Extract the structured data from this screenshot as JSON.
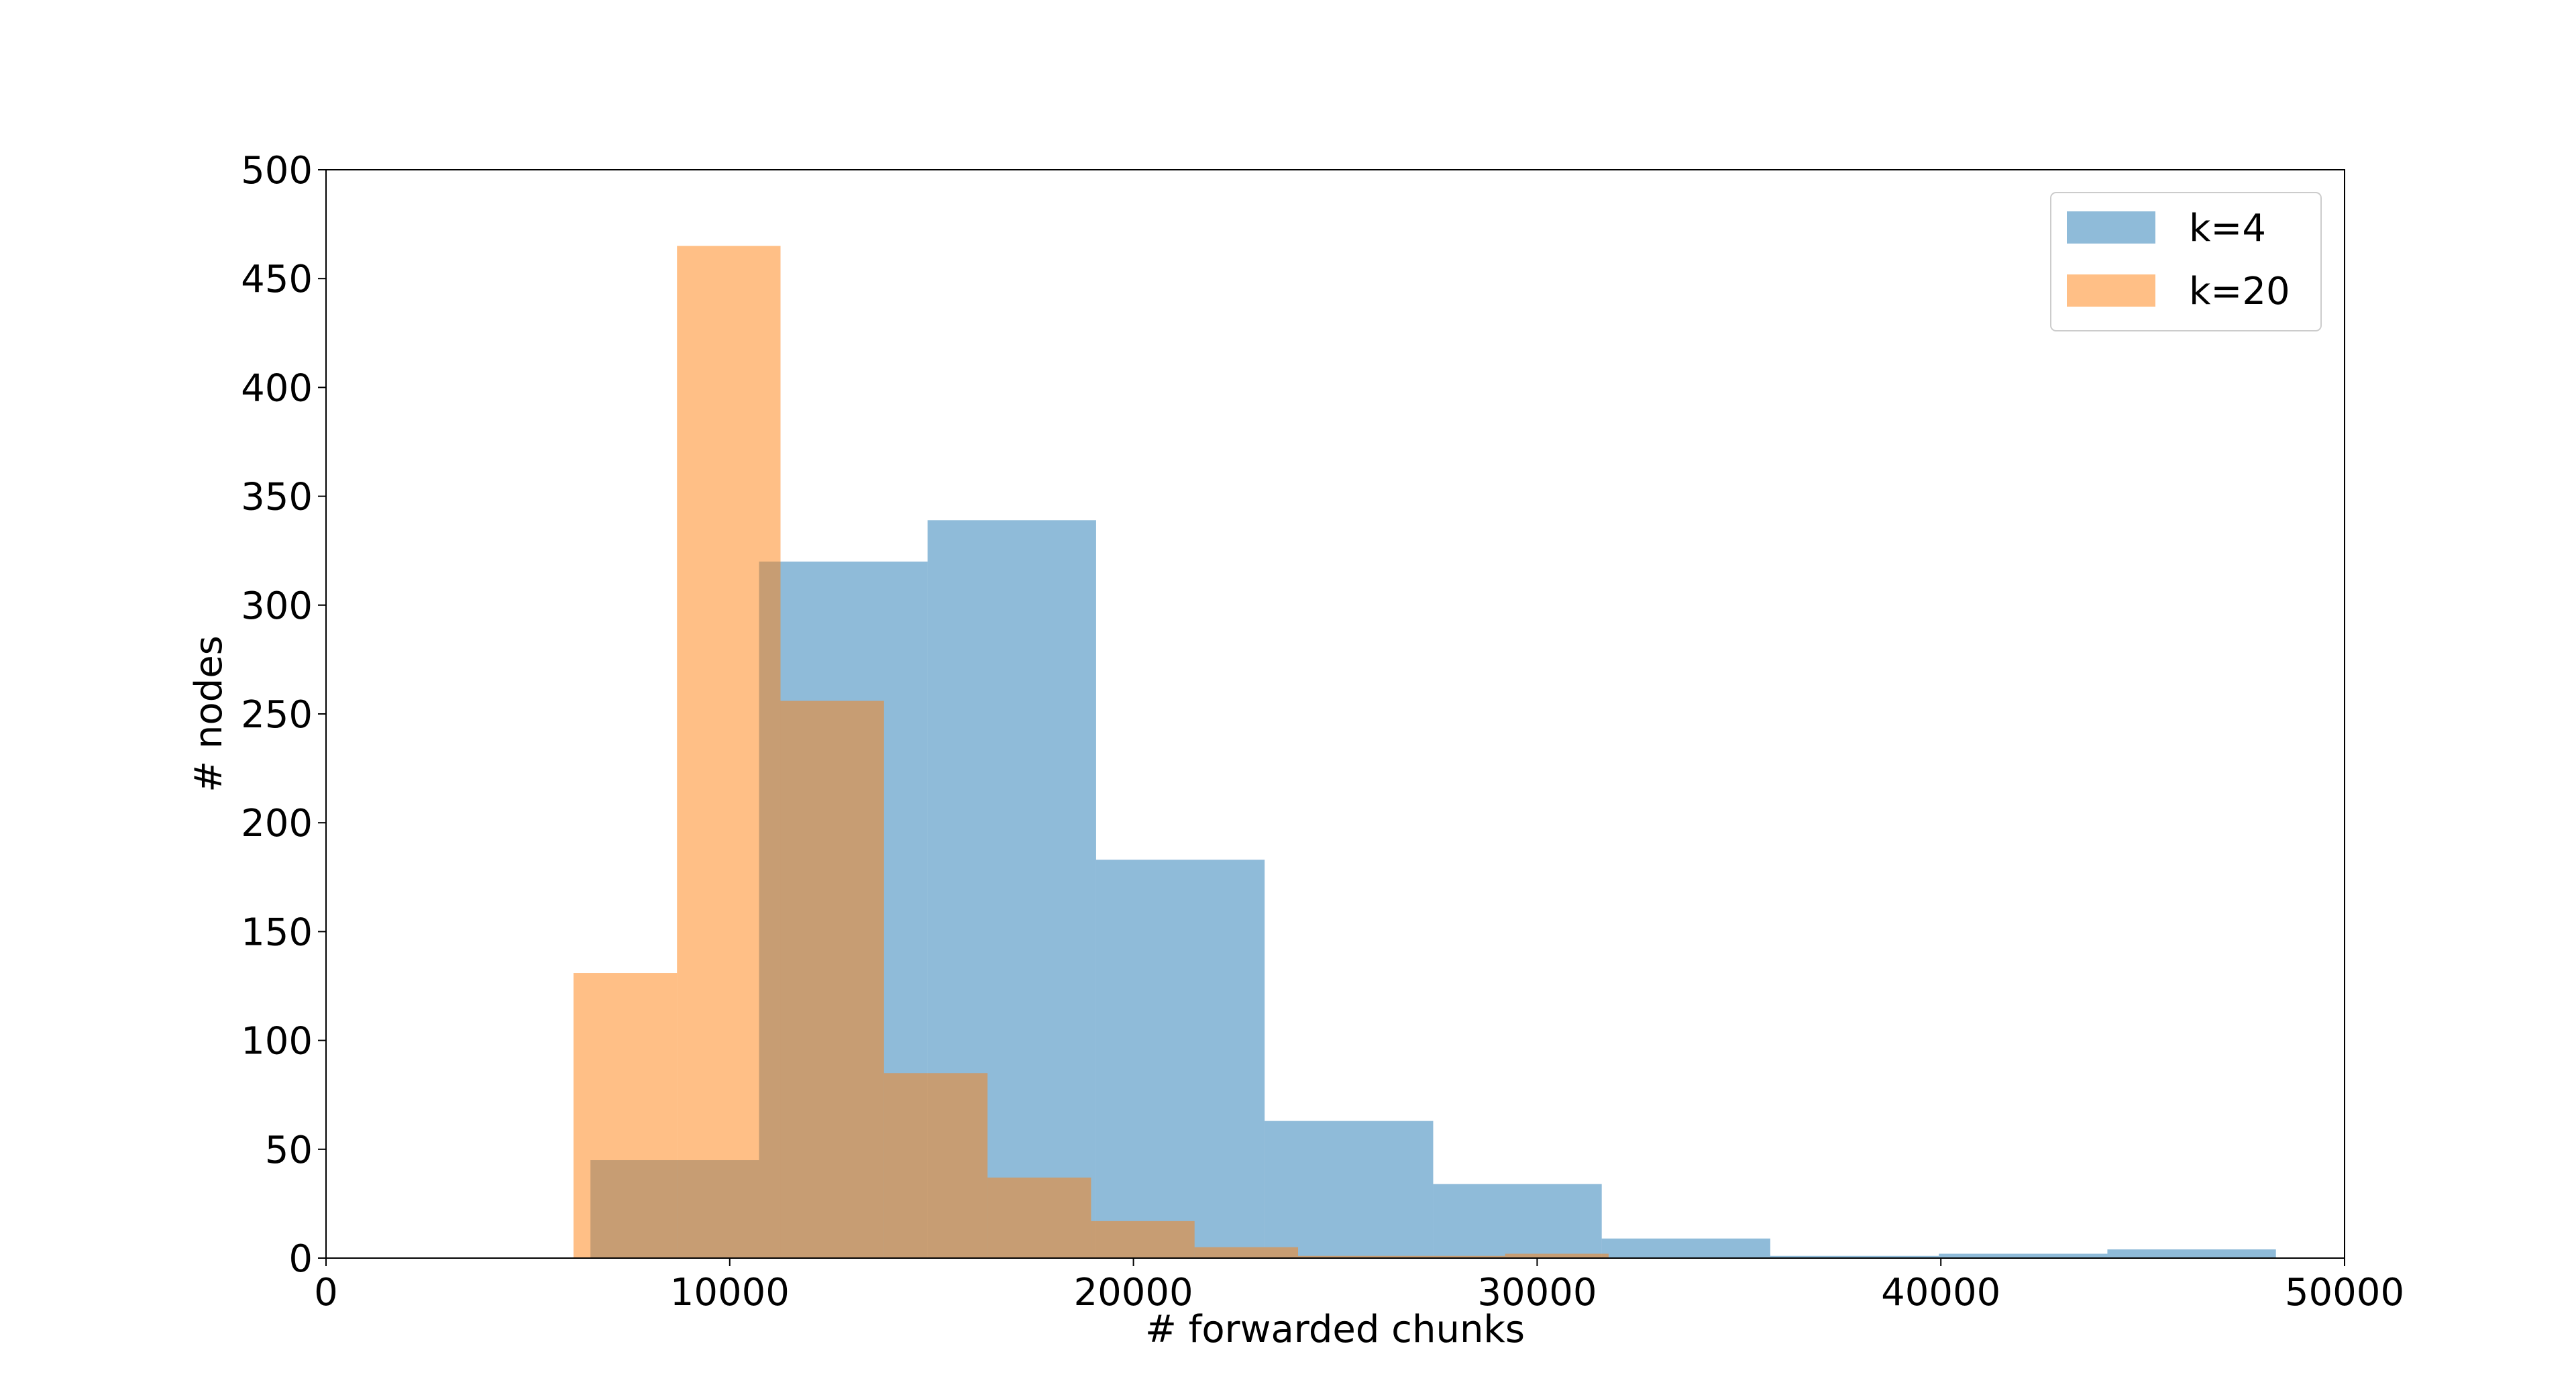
{
  "chart_data": {
    "type": "histogram",
    "xlabel": "# forwarded chunks",
    "ylabel": "# nodes",
    "xlim": [
      0,
      50000
    ],
    "xticks": [
      0,
      10000,
      20000,
      30000,
      40000,
      50000
    ],
    "ylim": [
      0,
      500
    ],
    "yticks": [
      0,
      50,
      100,
      150,
      200,
      250,
      300,
      350,
      400,
      450,
      500
    ],
    "legend": "upper right",
    "alpha": 0.5,
    "series": [
      {
        "name": "k=4",
        "color": "#1f77b4",
        "bins": [
          6550,
          10725,
          14900,
          19075,
          23250,
          27425,
          31600,
          35775,
          39950,
          44125,
          48300
        ],
        "values": [
          45,
          320,
          339,
          183,
          63,
          34,
          9,
          1,
          2,
          4
        ]
      },
      {
        "name": "k=20",
        "color": "#ff7f0e",
        "bins": [
          6130,
          8694,
          11258,
          13822,
          16386,
          18950,
          21514,
          24078,
          26642,
          29206,
          31770
        ],
        "values": [
          131,
          465,
          256,
          85,
          37,
          17,
          5,
          1,
          1,
          2
        ]
      }
    ]
  }
}
